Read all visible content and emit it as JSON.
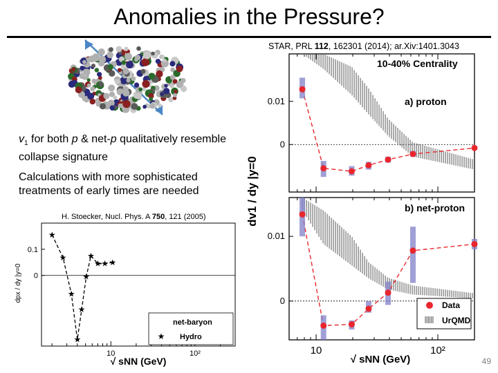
{
  "slide": {
    "title": "Anomalies in the Pressure?",
    "citation": "STAR, PRL 112, 162301 (2014); ar.Xiv:1401.3043",
    "citation_pre": "STAR, PRL ",
    "citation_vol": "112",
    "citation_post": ", 162301 (2014); ar.Xiv:1401.3043",
    "bullet1_v": "v",
    "bullet1_sub": "1",
    "bullet1_mid1": " for both ",
    "bullet1_p": "p",
    "bullet1_mid2": " & net-",
    "bullet1_p2": "p",
    "bullet1_rest": " qualitatively resemble collapse signature",
    "bullet2": "Calculations with more sophisticated treatments of early times are needed",
    "hydro_ref_pre": "H. Stoecker,  Nucl. Phys. A ",
    "hydro_ref_vol": "750",
    "hydro_ref_post": ", 121 (2005)",
    "slide_number": "49"
  },
  "colors": {
    "data_red": "#e8262d",
    "syst_band": "#8080c8",
    "urqmd_hatch": "#555555",
    "arrow_blue": "#4a86c5"
  },
  "chart_data": [
    {
      "type": "scatter",
      "panel": "a",
      "x_scale": "log",
      "xlim": [
        6,
        200
      ],
      "ylim": [
        -0.011,
        0.021
      ],
      "yticks": [
        0,
        0.01
      ],
      "ytick_labels": [
        "0",
        "0.01"
      ],
      "ylabel": "dv1 / dy |y=0",
      "title": "10-40% Centrality",
      "panel_label": "a) proton",
      "series": [
        {
          "name": "Data",
          "x": [
            7.7,
            11.5,
            19.6,
            27,
            39,
            62.4,
            200
          ],
          "y": [
            0.0128,
            -0.0055,
            -0.0062,
            -0.0048,
            -0.0035,
            -0.0022,
            -0.0008
          ],
          "syst_low": [
            0.0107,
            -0.0075,
            -0.0072,
            -0.0058,
            -0.0042,
            -0.0028,
            -0.001
          ],
          "syst_high": [
            0.0155,
            -0.0038,
            -0.005,
            -0.004,
            -0.0028,
            -0.0015,
            -0.0006
          ]
        },
        {
          "name": "UrQMD",
          "x": [
            7.7,
            11.5,
            19.6,
            27,
            39,
            62.4,
            200
          ],
          "y_low": [
            0.021,
            0.0175,
            0.0115,
            0.007,
            0.002,
            -0.0028,
            -0.0058
          ],
          "y_high": [
            0.021,
            0.021,
            0.018,
            0.013,
            0.006,
            0.0005,
            -0.0035
          ]
        }
      ]
    },
    {
      "type": "scatter",
      "panel": "b",
      "x_scale": "log",
      "xlim": [
        6,
        200
      ],
      "ylim": [
        -0.006,
        0.016
      ],
      "yticks": [
        0,
        0.01
      ],
      "ytick_labels": [
        "0",
        "0.01"
      ],
      "xticks": [
        10,
        100
      ],
      "xtick_labels": [
        "10",
        "10²"
      ],
      "xlabel": "√ sNN (GeV)",
      "panel_label": "b) net-proton",
      "legend": [
        "Data",
        "UrQMD"
      ],
      "series": [
        {
          "name": "Data",
          "x": [
            7.7,
            11.5,
            19.6,
            27,
            39,
            62.4,
            200
          ],
          "y": [
            0.0134,
            -0.0038,
            -0.0036,
            -0.0012,
            0.0013,
            0.0078,
            0.0088
          ],
          "syst_low": [
            0.01,
            -0.006,
            -0.0044,
            -0.0018,
            -0.0006,
            0.0028,
            0.008
          ],
          "syst_high": [
            0.016,
            -0.0022,
            -0.003,
            0.0,
            0.003,
            0.0115,
            0.0096
          ]
        },
        {
          "name": "UrQMD",
          "x": [
            7.7,
            11.5,
            19.6,
            27,
            39,
            62.4,
            200
          ],
          "y_low": [
            0.014,
            0.0088,
            0.0055,
            0.0035,
            0.0018,
            0.001,
            0.0004
          ],
          "y_high": [
            0.016,
            0.014,
            0.01,
            0.006,
            0.0036,
            0.0024,
            0.0012
          ]
        }
      ]
    },
    {
      "type": "line",
      "panel": "hydro",
      "x_scale": "log",
      "xlim": [
        1.5,
        300
      ],
      "ylim": [
        -0.27,
        0.2
      ],
      "yticks": [
        0,
        0.1
      ],
      "ytick_labels": [
        "0",
        "0.1"
      ],
      "xticks": [
        10,
        100
      ],
      "xtick_labels": [
        "10",
        "10²"
      ],
      "xlabel": "√ sNN (GeV)",
      "ylabel": "dpx / dy |y=0",
      "legend_title": "net-baryon",
      "legend": [
        "Hydro"
      ],
      "series": [
        {
          "name": "Hydro",
          "x": [
            2.0,
            2.7,
            3.4,
            4.0,
            4.5,
            5.1,
            5.8,
            7.0,
            8.5,
            10.5
          ],
          "y": [
            0.155,
            0.068,
            -0.07,
            -0.245,
            -0.13,
            -0.005,
            0.075,
            0.045,
            0.045,
            0.05
          ]
        }
      ]
    }
  ]
}
